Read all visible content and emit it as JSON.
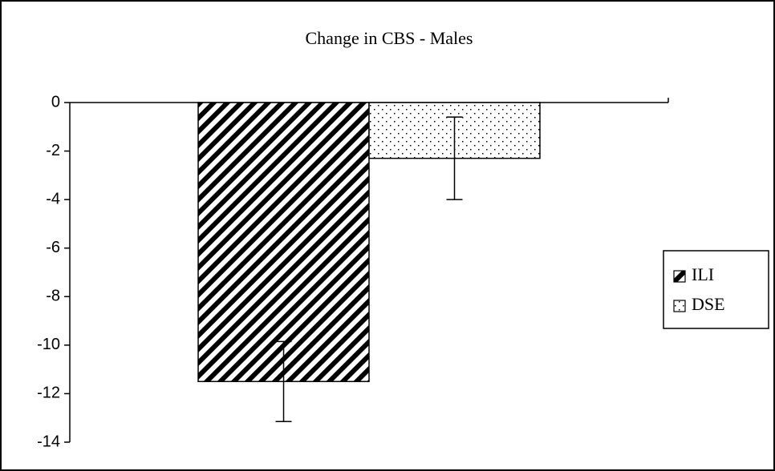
{
  "chart_data": {
    "type": "bar",
    "title": "Change in CBS - Males",
    "categories": [
      null
    ],
    "series": [
      {
        "name": "ILI",
        "color": "#000000",
        "pattern": "diagonal",
        "values": [
          -11.5
        ],
        "errors": [
          1.65
        ]
      },
      {
        "name": "DSE",
        "color": "#000000",
        "pattern": "dots",
        "values": [
          -2.3
        ],
        "errors": [
          1.7
        ]
      }
    ],
    "ylim": [
      -14,
      0
    ],
    "yticks": [
      0,
      -2,
      -4,
      -6,
      -8,
      -10,
      -12,
      -14
    ],
    "grid": false,
    "error_bars": true,
    "legend": "right"
  }
}
